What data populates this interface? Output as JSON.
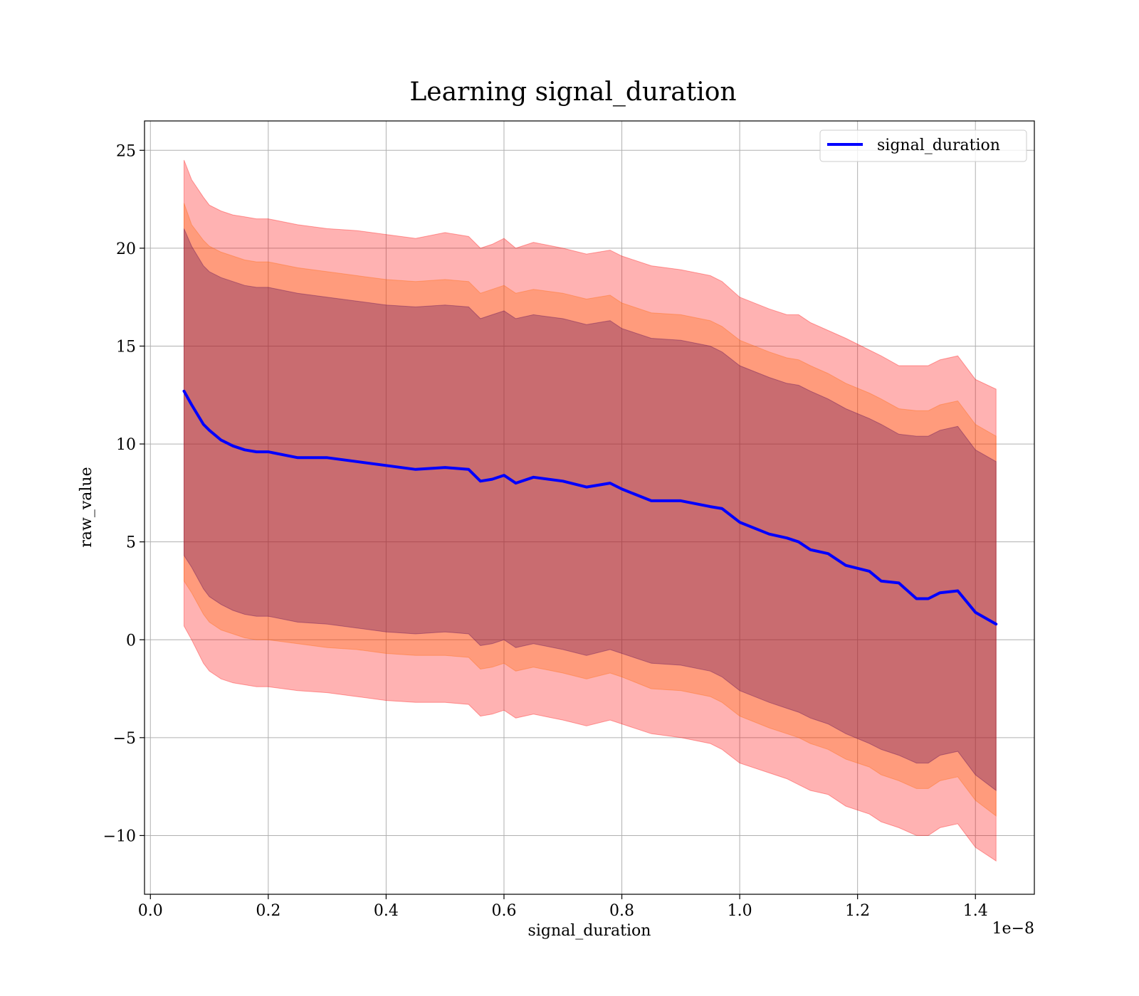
{
  "chart_data": {
    "type": "line",
    "title": "Learning signal_duration",
    "xlabel": "signal_duration",
    "ylabel": "raw_value",
    "x_offset_text": "1e−8",
    "xlim": [
      -0.01,
      1.5
    ],
    "ylim": [
      -13,
      26.5
    ],
    "x_ticks": [
      0.0,
      0.2,
      0.4,
      0.6,
      0.8,
      1.0,
      1.2,
      1.4
    ],
    "x_tick_labels": [
      "0.0",
      "0.2",
      "0.4",
      "0.6",
      "0.8",
      "1.0",
      "1.2",
      "1.4"
    ],
    "y_ticks": [
      -10,
      -5,
      0,
      5,
      10,
      15,
      20,
      25
    ],
    "y_tick_labels": [
      "−10",
      "−5",
      "0",
      "5",
      "10",
      "15",
      "20",
      "25"
    ],
    "grid": true,
    "legend_position": "top-right",
    "x": [
      0.057,
      0.07,
      0.09,
      0.1,
      0.12,
      0.14,
      0.16,
      0.18,
      0.2,
      0.25,
      0.3,
      0.35,
      0.4,
      0.45,
      0.5,
      0.54,
      0.56,
      0.58,
      0.6,
      0.62,
      0.65,
      0.7,
      0.74,
      0.78,
      0.8,
      0.85,
      0.9,
      0.95,
      0.97,
      1.0,
      1.05,
      1.08,
      1.1,
      1.12,
      1.15,
      1.18,
      1.22,
      1.24,
      1.27,
      1.3,
      1.32,
      1.34,
      1.37,
      1.4,
      1.435
    ],
    "series": [
      {
        "name": "signal_duration",
        "color": "#0000ff",
        "y": [
          12.7,
          12.0,
          11.0,
          10.7,
          10.2,
          9.9,
          9.7,
          9.6,
          9.6,
          9.3,
          9.3,
          9.1,
          8.9,
          8.7,
          8.8,
          8.7,
          8.1,
          8.2,
          8.4,
          8.0,
          8.3,
          8.1,
          7.8,
          8.0,
          7.7,
          7.1,
          7.1,
          6.8,
          6.7,
          6.0,
          5.4,
          5.2,
          5.0,
          4.6,
          4.4,
          3.8,
          3.5,
          3.0,
          2.9,
          2.1,
          2.1,
          2.4,
          2.5,
          1.4,
          0.8
        ]
      }
    ],
    "bands": [
      {
        "name": "outer",
        "color": "#ff0000",
        "opacity": 0.3,
        "upper": [
          24.5,
          23.5,
          22.6,
          22.2,
          21.9,
          21.7,
          21.6,
          21.5,
          21.5,
          21.2,
          21.0,
          20.9,
          20.7,
          20.5,
          20.8,
          20.6,
          20.0,
          20.2,
          20.5,
          20.0,
          20.3,
          20.0,
          19.7,
          19.9,
          19.6,
          19.1,
          18.9,
          18.6,
          18.3,
          17.5,
          16.9,
          16.6,
          16.6,
          16.2,
          15.8,
          15.4,
          14.8,
          14.5,
          14.0,
          14.0,
          14.0,
          14.3,
          14.5,
          13.3,
          12.8
        ],
        "lower": [
          0.7,
          0.0,
          -1.2,
          -1.6,
          -2.0,
          -2.2,
          -2.3,
          -2.4,
          -2.4,
          -2.6,
          -2.7,
          -2.9,
          -3.1,
          -3.2,
          -3.2,
          -3.3,
          -3.9,
          -3.8,
          -3.6,
          -4.0,
          -3.8,
          -4.1,
          -4.4,
          -4.1,
          -4.3,
          -4.8,
          -5.0,
          -5.3,
          -5.6,
          -6.3,
          -6.8,
          -7.1,
          -7.4,
          -7.7,
          -7.9,
          -8.5,
          -8.9,
          -9.3,
          -9.6,
          -10.0,
          -10.0,
          -9.6,
          -9.4,
          -10.6,
          -11.3
        ]
      },
      {
        "name": "middle",
        "color": "#ff6600",
        "opacity": 0.3,
        "upper": [
          22.3,
          21.2,
          20.4,
          20.1,
          19.8,
          19.6,
          19.4,
          19.3,
          19.3,
          19.0,
          18.8,
          18.6,
          18.4,
          18.3,
          18.4,
          18.3,
          17.7,
          17.9,
          18.1,
          17.7,
          17.9,
          17.7,
          17.4,
          17.6,
          17.2,
          16.7,
          16.6,
          16.3,
          16.0,
          15.3,
          14.7,
          14.4,
          14.3,
          14.0,
          13.6,
          13.1,
          12.6,
          12.3,
          11.8,
          11.7,
          11.7,
          12.0,
          12.2,
          11.0,
          10.4
        ],
        "lower": [
          3.0,
          2.4,
          1.3,
          0.9,
          0.5,
          0.3,
          0.1,
          0.0,
          0.0,
          -0.2,
          -0.4,
          -0.5,
          -0.7,
          -0.8,
          -0.8,
          -0.9,
          -1.5,
          -1.4,
          -1.2,
          -1.6,
          -1.4,
          -1.7,
          -2.0,
          -1.7,
          -1.9,
          -2.5,
          -2.6,
          -2.9,
          -3.2,
          -3.9,
          -4.5,
          -4.8,
          -5.0,
          -5.3,
          -5.6,
          -6.1,
          -6.5,
          -6.9,
          -7.2,
          -7.6,
          -7.6,
          -7.2,
          -7.0,
          -8.2,
          -9.0
        ]
      },
      {
        "name": "inner",
        "color": "#4d0055",
        "opacity": 0.3,
        "upper": [
          21.0,
          20.1,
          19.1,
          18.8,
          18.5,
          18.3,
          18.1,
          18.0,
          18.0,
          17.7,
          17.5,
          17.3,
          17.1,
          17.0,
          17.1,
          17.0,
          16.4,
          16.6,
          16.8,
          16.4,
          16.6,
          16.4,
          16.1,
          16.3,
          15.9,
          15.4,
          15.3,
          15.0,
          14.7,
          14.0,
          13.4,
          13.1,
          13.0,
          12.7,
          12.3,
          11.8,
          11.3,
          11.0,
          10.5,
          10.4,
          10.4,
          10.7,
          10.9,
          9.7,
          9.1
        ],
        "lower": [
          4.3,
          3.7,
          2.6,
          2.2,
          1.8,
          1.5,
          1.3,
          1.2,
          1.2,
          0.9,
          0.8,
          0.6,
          0.4,
          0.3,
          0.4,
          0.3,
          -0.3,
          -0.2,
          0.0,
          -0.4,
          -0.2,
          -0.5,
          -0.8,
          -0.5,
          -0.7,
          -1.2,
          -1.3,
          -1.6,
          -1.9,
          -2.6,
          -3.2,
          -3.5,
          -3.7,
          -4.0,
          -4.3,
          -4.8,
          -5.3,
          -5.6,
          -5.9,
          -6.3,
          -6.3,
          -5.9,
          -5.7,
          -6.9,
          -7.7
        ]
      }
    ]
  }
}
